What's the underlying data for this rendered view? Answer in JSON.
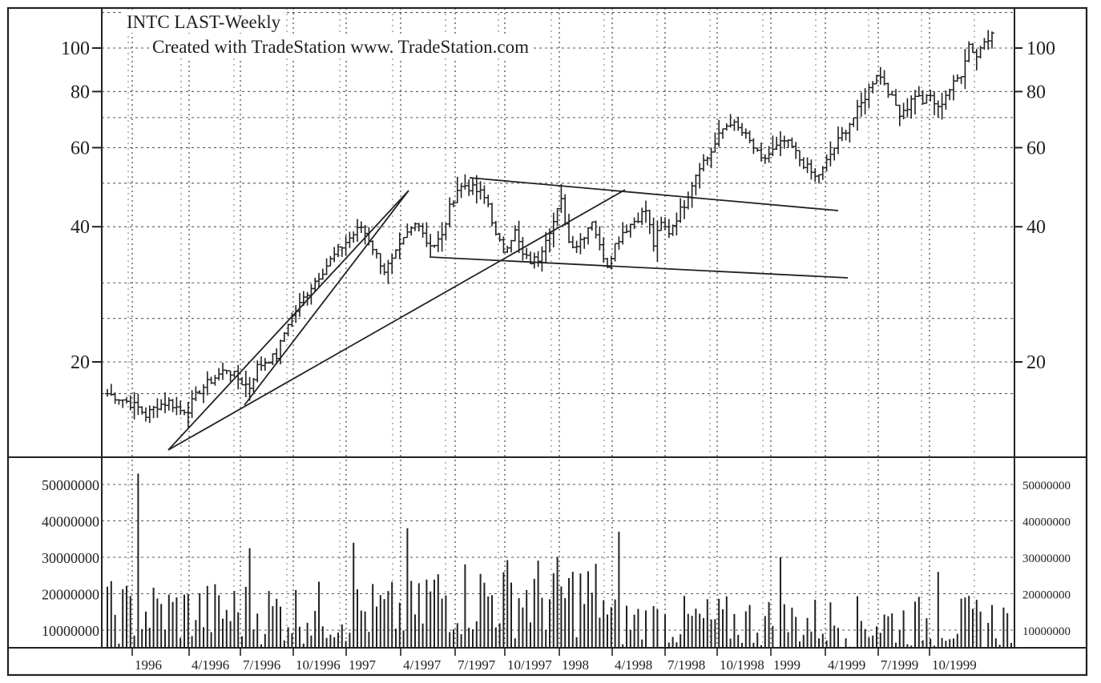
{
  "chart_data": {
    "type": "bar",
    "title": "INTC LAST-Weekly",
    "subtitle": "Created with TradeStation www. TradeStation.com",
    "price_axis": {
      "scale": "log",
      "ylim": [
        14.5,
        120
      ],
      "ticks": [
        100,
        80,
        60,
        40,
        20
      ],
      "tick_labels": [
        "100",
        "80",
        "60",
        "40",
        "20"
      ]
    },
    "volume_axis": {
      "ylim": [
        0,
        58000000
      ],
      "ticks": [
        50000000,
        40000000,
        30000000,
        20000000,
        10000000
      ],
      "tick_labels": [
        "50000000",
        "40000000",
        "30000000",
        "20000000",
        "10000000"
      ]
    },
    "x_axis": {
      "tick_labels": [
        "1996",
        "4/1996",
        "7/1996",
        "10/1996",
        "1997",
        "4/1997",
        "7/1997",
        "10/1997",
        "1998",
        "4/1998",
        "7/1998",
        "10/1998",
        "1999",
        "4/1999",
        "7/1999",
        "10/1999"
      ]
    },
    "grid": true,
    "series": [
      {
        "type": "ohlc_weekly",
        "key_closes": [
          [
            0,
            17.0
          ],
          [
            4,
            16.5
          ],
          [
            8,
            15.8
          ],
          [
            10,
            15.2
          ],
          [
            13,
            16.0
          ],
          [
            16,
            16.3
          ],
          [
            19,
            15.6
          ],
          [
            21,
            15.7
          ],
          [
            24,
            17.3
          ],
          [
            27,
            18.2
          ],
          [
            31,
            19.3
          ],
          [
            35,
            18.0
          ],
          [
            37,
            17.6
          ],
          [
            39,
            19.5
          ],
          [
            42,
            20.3
          ],
          [
            44,
            20.6
          ],
          [
            47,
            24.5
          ],
          [
            50,
            26.8
          ],
          [
            53,
            29.5
          ],
          [
            56,
            32.0
          ],
          [
            59,
            34.5
          ],
          [
            62,
            37.0
          ],
          [
            64,
            38.5
          ],
          [
            66,
            40.0
          ],
          [
            68,
            37.5
          ],
          [
            70,
            34.5
          ],
          [
            72,
            32.0
          ],
          [
            74,
            33.5
          ],
          [
            76,
            36.0
          ],
          [
            78,
            38.5
          ],
          [
            80,
            40.5
          ],
          [
            81,
            41.0
          ],
          [
            83,
            37.0
          ],
          [
            85,
            36.5
          ],
          [
            87,
            38.0
          ],
          [
            89,
            44.0
          ],
          [
            91,
            48.5
          ],
          [
            93,
            49.5
          ],
          [
            95,
            48.5
          ],
          [
            97,
            47.5
          ],
          [
            99,
            45.0
          ],
          [
            101,
            38.0
          ],
          [
            103,
            35.5
          ],
          [
            106,
            39.0
          ],
          [
            108,
            34.5
          ],
          [
            110,
            33.5
          ],
          [
            112,
            34.0
          ],
          [
            114,
            38.0
          ],
          [
            116,
            41.0
          ],
          [
            118,
            45.5
          ],
          [
            120,
            37.0
          ],
          [
            122,
            36.5
          ],
          [
            124,
            38.5
          ],
          [
            126,
            41.5
          ],
          [
            128,
            36.0
          ],
          [
            130,
            33.0
          ],
          [
            132,
            36.5
          ],
          [
            134,
            39.0
          ],
          [
            136,
            40.5
          ],
          [
            138,
            42.0
          ],
          [
            140,
            43.5
          ],
          [
            142,
            36.5
          ],
          [
            144,
            40.5
          ],
          [
            146,
            39.0
          ],
          [
            148,
            42.0
          ],
          [
            150,
            45.0
          ],
          [
            152,
            50.0
          ],
          [
            154,
            55.0
          ],
          [
            156,
            57.0
          ],
          [
            158,
            61.0
          ],
          [
            160,
            66.0
          ],
          [
            162,
            68.5
          ],
          [
            164,
            66.0
          ],
          [
            166,
            63.5
          ],
          [
            168,
            60.0
          ],
          [
            170,
            56.0
          ],
          [
            172,
            58.0
          ],
          [
            174,
            60.0
          ],
          [
            176,
            62.0
          ],
          [
            178,
            60.0
          ],
          [
            180,
            56.5
          ],
          [
            182,
            54.0
          ],
          [
            184,
            51.5
          ],
          [
            186,
            53.5
          ],
          [
            188,
            58.0
          ],
          [
            190,
            62.0
          ],
          [
            192,
            66.0
          ],
          [
            194,
            70.0
          ],
          [
            196,
            75.0
          ],
          [
            198,
            81.0
          ],
          [
            200,
            88.0
          ],
          [
            202,
            84.0
          ],
          [
            204,
            77.0
          ],
          [
            206,
            72.0
          ],
          [
            208,
            74.0
          ],
          [
            210,
            79.0
          ],
          [
            212,
            76.0
          ],
          [
            214,
            78.0
          ],
          [
            216,
            73.0
          ],
          [
            218,
            79.0
          ],
          [
            220,
            83.0
          ],
          [
            222,
            88.0
          ],
          [
            224,
            102.0
          ],
          [
            226,
            96.0
          ],
          [
            228,
            104.0
          ],
          [
            230,
            108.0
          ]
        ]
      },
      {
        "type": "volume_weekly"
      }
    ],
    "trendlines": [
      {
        "from": [
          "2/1996",
          15.0
        ],
        "to": [
          "4/1997",
          47.5
        ]
      },
      {
        "from": [
          "6/1996",
          17.5
        ],
        "to": [
          "4/1997",
          47.5
        ]
      },
      {
        "from": [
          "1/1996",
          15.0
        ],
        "to": [
          "4/1998",
          48.5
        ]
      },
      {
        "from": [
          "6/1997",
          52.0
        ],
        "to": [
          "4/1999",
          44.0
        ]
      },
      {
        "from": [
          "4/1997",
          35.5
        ],
        "to": [
          "4/1999",
          32.0
        ]
      }
    ],
    "volume_spikes": [
      {
        "x_label": "1996",
        "value": 53000000
      },
      {
        "x_label": "7/1996",
        "value": 32500000
      },
      {
        "x_label": "1997",
        "value": 34000000
      },
      {
        "x_label": "4/1997",
        "value": 38000000
      },
      {
        "x_label": "4/1998",
        "value": 37000000
      },
      {
        "x_label": "1999",
        "value": 30000000
      },
      {
        "x_label": "10/1999",
        "value": 26000000
      }
    ]
  }
}
